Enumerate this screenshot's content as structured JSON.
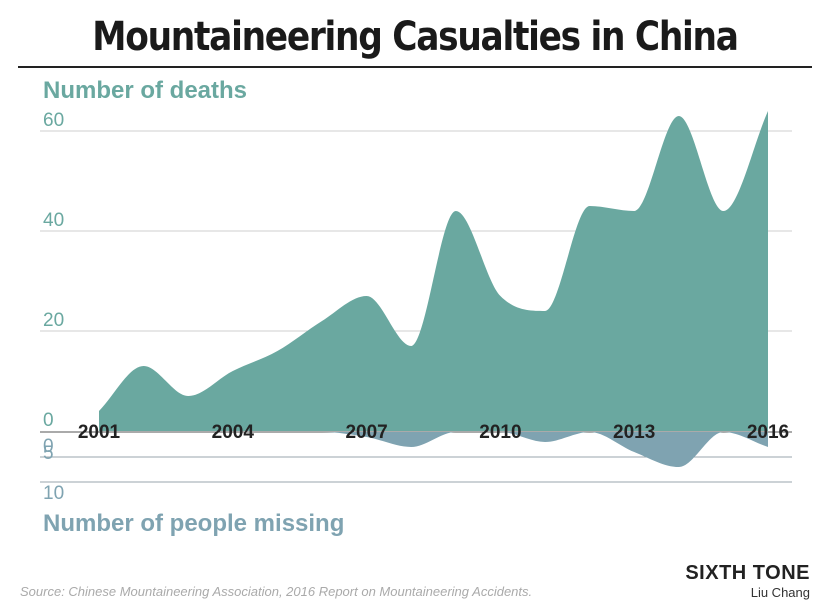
{
  "chart_data": {
    "type": "area",
    "title": "Mountaineering Casualties in China",
    "x": [
      2001,
      2002,
      2003,
      2004,
      2005,
      2006,
      2007,
      2008,
      2009,
      2010,
      2011,
      2012,
      2013,
      2014,
      2015,
      2016
    ],
    "x_tick_labels": [
      "2001",
      "2004",
      "2007",
      "2010",
      "2013",
      "2016"
    ],
    "series": [
      {
        "name": "Number of deaths",
        "color": "#6aa8a0",
        "direction": "up",
        "values": [
          4,
          13,
          7,
          12,
          16,
          22,
          27,
          17,
          44,
          27,
          24,
          45,
          44,
          63,
          44,
          64
        ],
        "ylim": [
          0,
          60
        ],
        "y_ticks": [
          0,
          20,
          40,
          60
        ]
      },
      {
        "name": "Number of people missing",
        "color": "#7fa3b1",
        "direction": "down",
        "values": [
          0,
          0,
          0,
          0,
          0,
          0,
          1,
          3,
          0,
          0,
          2,
          0,
          4,
          7,
          0,
          3
        ],
        "ylim": [
          0,
          10
        ],
        "y_ticks": [
          0,
          5,
          10
        ]
      }
    ],
    "grid": true,
    "source": "Source: Chinese Mountaineering Association, 2016 Report on Mountaineering Accidents."
  },
  "brand": {
    "name": "SIXTH TONE",
    "author": "Liu Chang"
  }
}
